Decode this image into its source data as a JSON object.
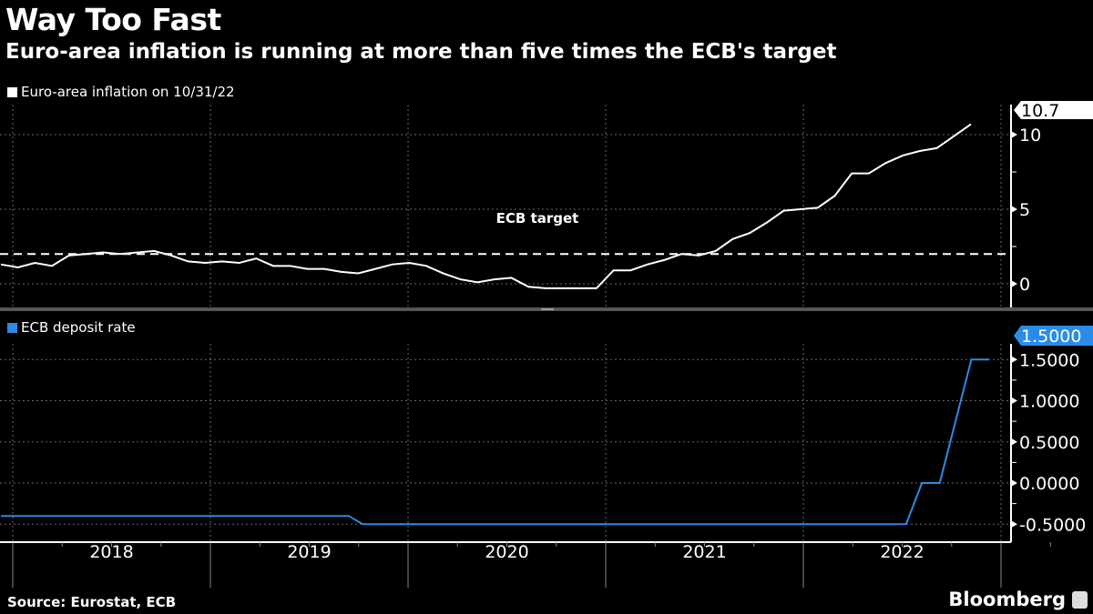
{
  "header": {
    "title": "Way Too Fast",
    "subtitle": "Euro-area inflation is running at more than five times the ECB's target"
  },
  "footer": {
    "source": "Source: Eurostat, ECB",
    "brand": "Bloomberg"
  },
  "colors": {
    "inflation": "#ffffff",
    "deposit_rate": "#2b8ce8",
    "background": "#000000"
  },
  "chart_data": [
    {
      "type": "line",
      "title": "Euro-area inflation",
      "legend": "Euro-area inflation on 10/31/22",
      "annotation": "ECB target",
      "target_value": 2,
      "last_value_label": "10.7",
      "ylim": [
        -1.5,
        12
      ],
      "yticks": [
        {
          "v": 0,
          "label": "0"
        },
        {
          "v": 5,
          "label": "5"
        },
        {
          "v": 10,
          "label": "10"
        }
      ],
      "start_month": "2018-01",
      "x_start": 2017.94,
      "x_step": 0.0861,
      "values": [
        1.3,
        1.1,
        1.4,
        1.2,
        1.9,
        2.0,
        2.1,
        2.0,
        2.1,
        2.2,
        1.9,
        1.5,
        1.4,
        1.5,
        1.4,
        1.7,
        1.2,
        1.2,
        1.0,
        1.0,
        0.8,
        0.7,
        1.0,
        1.3,
        1.4,
        1.2,
        0.7,
        0.3,
        0.1,
        0.3,
        0.4,
        -0.2,
        -0.3,
        -0.3,
        -0.3,
        -0.3,
        0.9,
        0.9,
        1.3,
        1.6,
        2.0,
        1.9,
        2.2,
        3.0,
        3.4,
        4.1,
        4.9,
        5.0,
        5.1,
        5.9,
        7.4,
        7.4,
        8.1,
        8.6,
        8.9,
        9.1,
        9.9,
        10.7
      ]
    },
    {
      "type": "line",
      "title": "ECB deposit rate",
      "legend": "ECB deposit rate",
      "last_value_label": "1.5000",
      "ylim": [
        -0.7,
        1.7
      ],
      "yticks": [
        {
          "v": -0.5,
          "label": "-0.5000"
        },
        {
          "v": 0,
          "label": "0.0000"
        },
        {
          "v": 0.5,
          "label": "0.5000"
        },
        {
          "v": 1,
          "label": "1.0000"
        },
        {
          "v": 1.5,
          "label": "1.5000"
        }
      ],
      "points": [
        [
          2017.94,
          -0.4
        ],
        [
          2019.7,
          -0.4
        ],
        [
          2019.77,
          -0.5
        ],
        [
          2022.52,
          -0.5
        ],
        [
          2022.6,
          0
        ],
        [
          2022.69,
          0
        ],
        [
          2022.85,
          1.5
        ],
        [
          2022.94,
          1.5
        ]
      ]
    }
  ],
  "xaxis": {
    "years": [
      "2018",
      "2019",
      "2020",
      "2021",
      "2022"
    ],
    "range": [
      2017.94,
      2023.0
    ]
  }
}
